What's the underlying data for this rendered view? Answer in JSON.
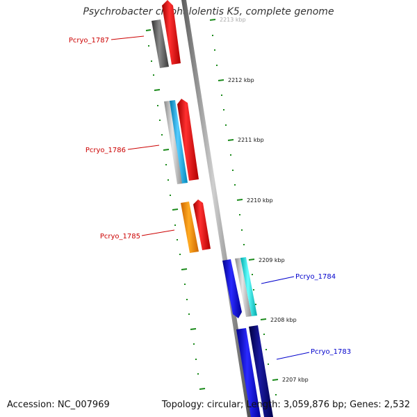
{
  "title": "Psychrobacter cryohalolentis K5, complete genome",
  "accession_text": "Accession: NC_007969",
  "stats_text": "Topology: circular; Length: 3,059,876 bp; Genes: 2,532",
  "colors": {
    "backbone": "#8a8a8a",
    "ticks": "#1a8a1a",
    "label_reverse": "#cc0000",
    "label_forward": "#0000cc"
  },
  "scale_labels": [
    "2213 kbp",
    "2212 kbp",
    "2211 kbp",
    "2210 kbp",
    "2209 kbp",
    "2208 kbp",
    "2207 kbp"
  ],
  "genes": [
    {
      "name": "Pcryo_1787",
      "strand": "reverse"
    },
    {
      "name": "Pcryo_1786",
      "strand": "reverse"
    },
    {
      "name": "Pcryo_1785",
      "strand": "reverse"
    },
    {
      "name": "Pcryo_1784",
      "strand": "forward"
    },
    {
      "name": "Pcryo_1783",
      "strand": "forward"
    }
  ],
  "feature_colors": {
    "cds_reverse": "#ff1111",
    "cds_forward": "#1a1aee",
    "gene_other": "#6a6a6a",
    "gene_light": "#bbbbbb",
    "trna": "#22bbee",
    "rrna": "#ff9900",
    "misc_cyan": "#22eeee",
    "misc_navy": "#0a0a80"
  }
}
